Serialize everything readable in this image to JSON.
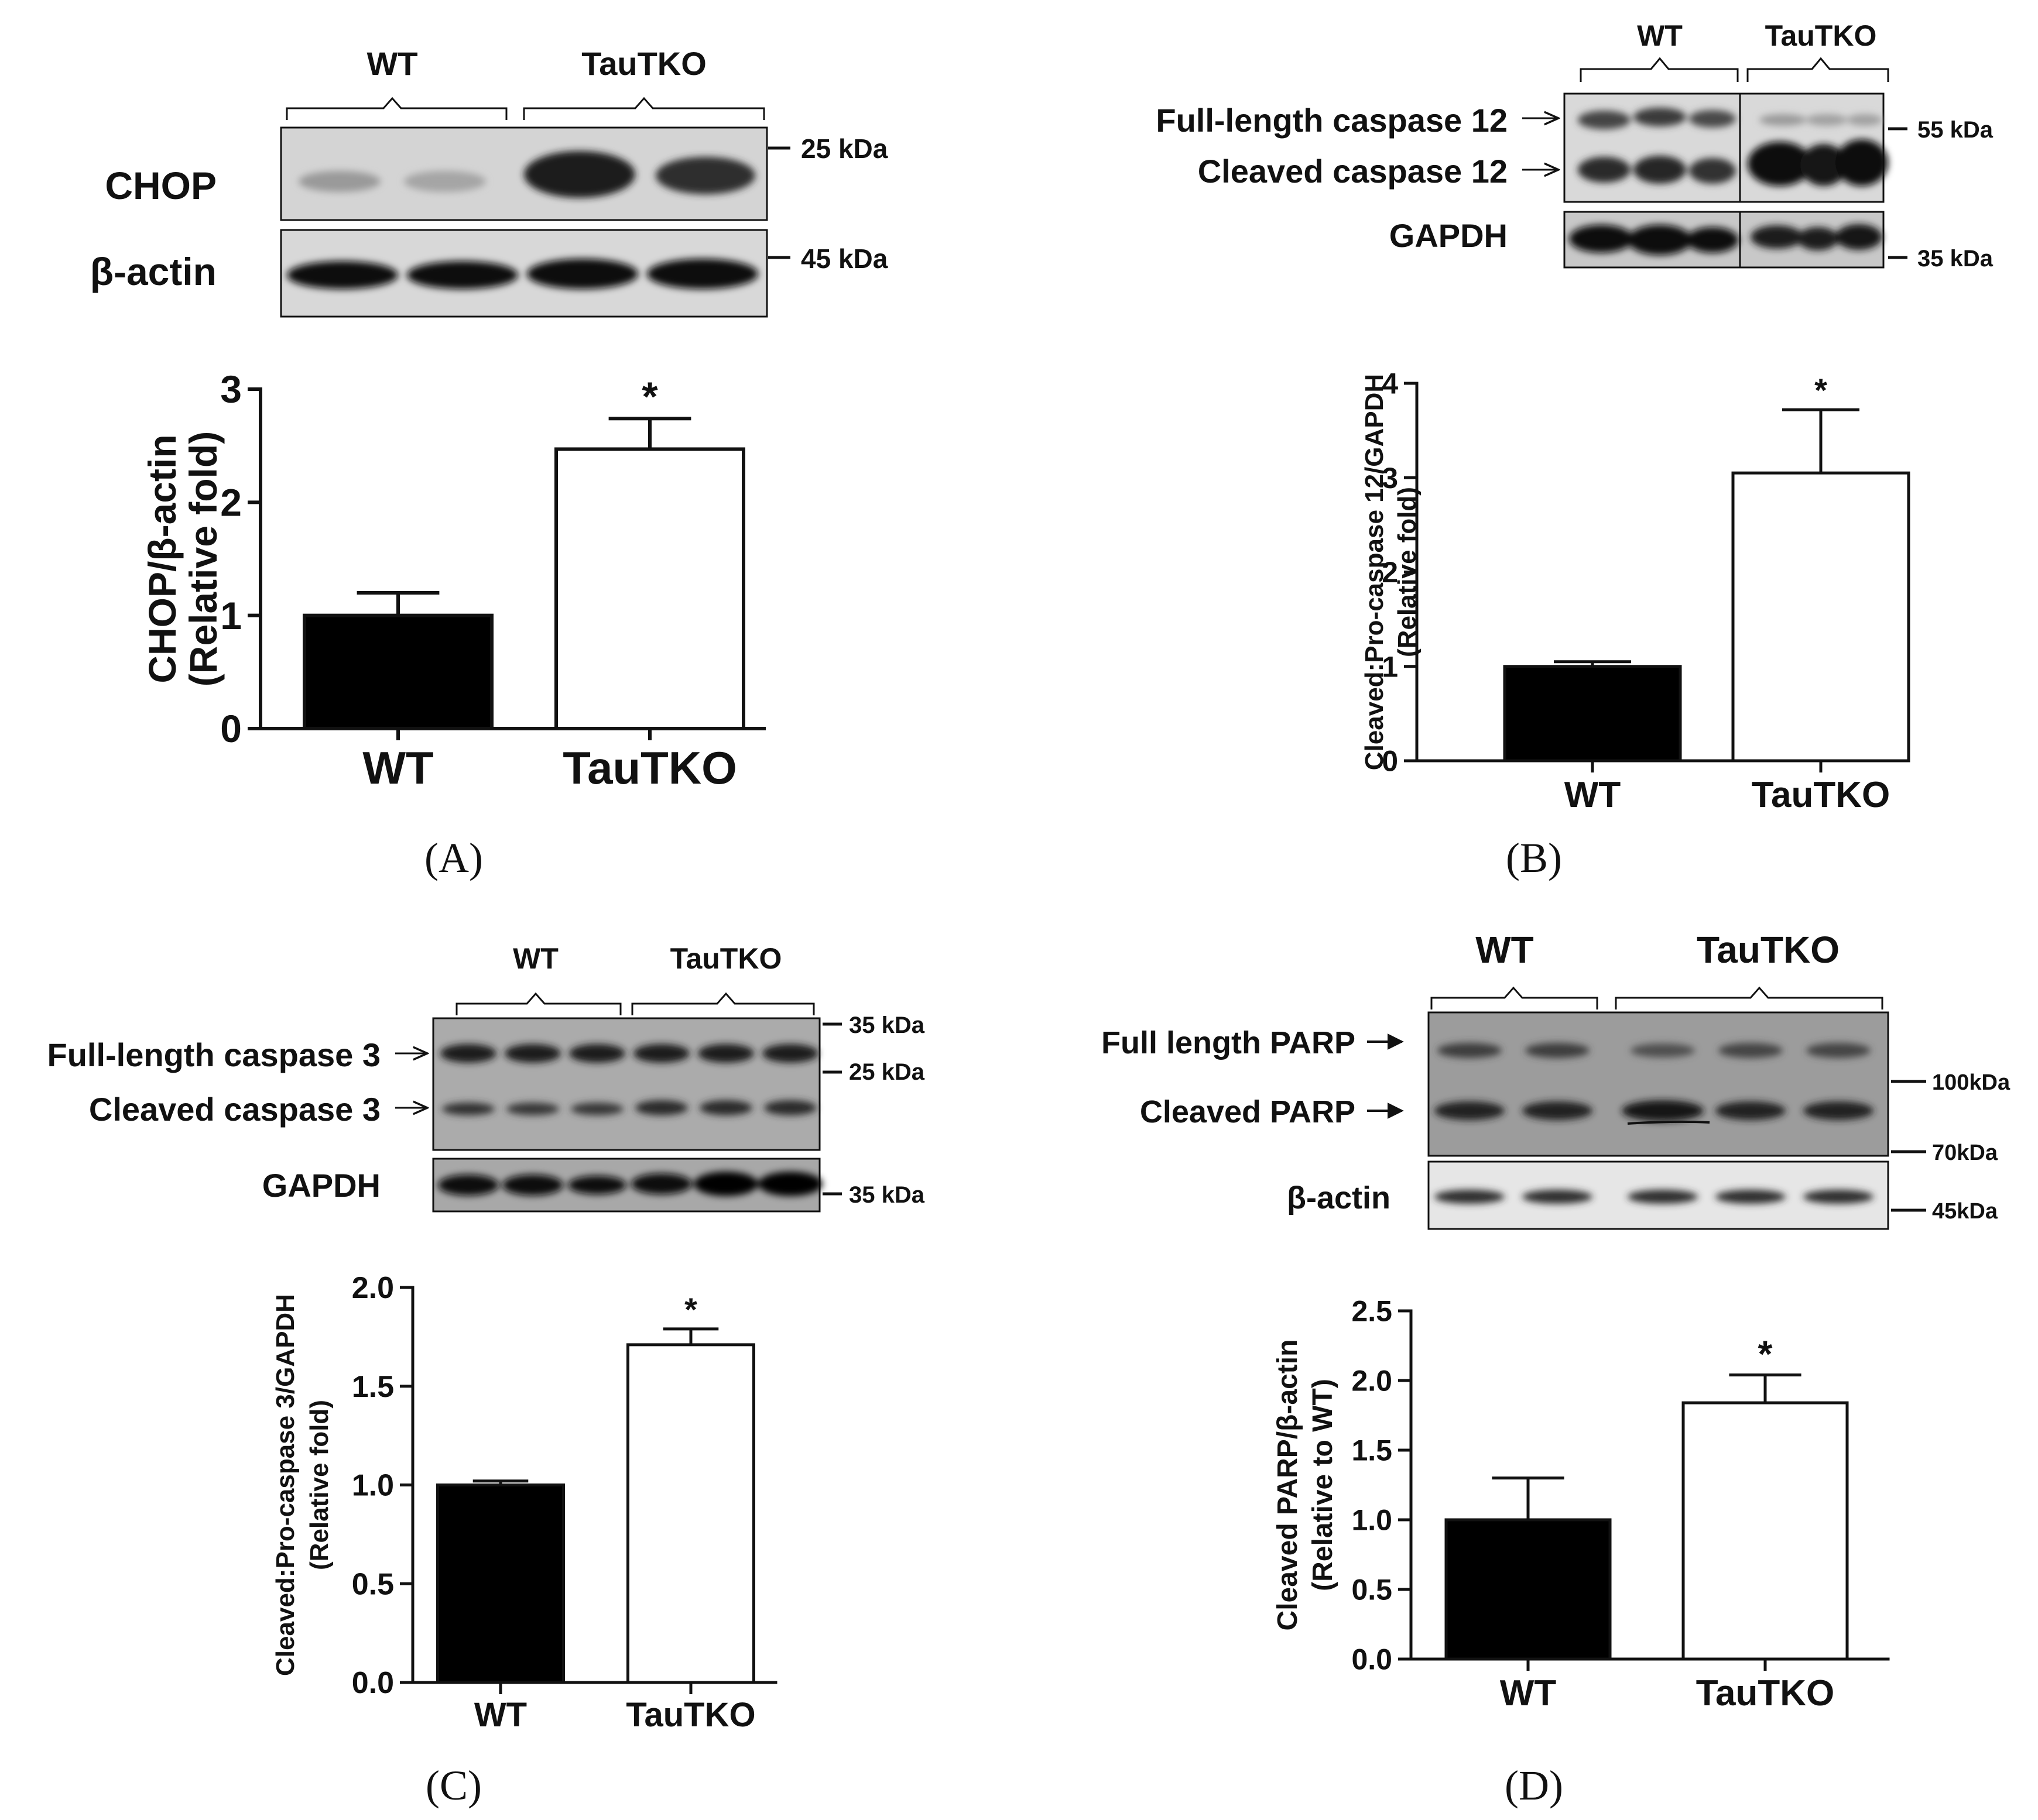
{
  "colors": {
    "wt_bar": "#000000",
    "tautko_bar": "#ffffff",
    "axis": "#111111",
    "blot_bg": "#d0d0d0",
    "band": "#222222"
  },
  "panels": [
    {
      "id": "A",
      "panel_label": "(A)",
      "blot": {
        "group_labels": [
          "WT",
          "TauTKO"
        ],
        "row_labels": [
          "CHOP",
          "β-actin"
        ],
        "marker_labels": [
          "25 kDa",
          "45 kDa"
        ]
      }
    },
    {
      "id": "B",
      "panel_label": "(B)",
      "blot": {
        "group_labels": [
          "WT",
          "TauTKO"
        ],
        "row_labels": [
          "Full-length caspase 12",
          "Cleaved caspase 12",
          "GAPDH"
        ],
        "marker_labels": [
          "55 kDa",
          "35 kDa"
        ]
      }
    },
    {
      "id": "C",
      "panel_label": "(C)",
      "blot": {
        "group_labels": [
          "WT",
          "TauTKO"
        ],
        "row_labels": [
          "Full-length caspase 3",
          "Cleaved caspase 3",
          "GAPDH"
        ],
        "marker_labels": [
          "35 kDa",
          "25 kDa",
          "35 kDa"
        ]
      }
    },
    {
      "id": "D",
      "panel_label": "(D)",
      "blot": {
        "group_labels": [
          "WT",
          "TauTKO"
        ],
        "row_labels": [
          "Full length PARP",
          "Cleaved PARP",
          "β-actin"
        ],
        "marker_labels": [
          "100kDa",
          "70kDa",
          "45kDa"
        ]
      }
    }
  ],
  "chart_data": [
    {
      "panel": "A",
      "type": "bar",
      "categories": [
        "WT",
        "TauTKO"
      ],
      "values": [
        1.0,
        2.47
      ],
      "errors": [
        0.2,
        0.27
      ],
      "significance": [
        "",
        "*"
      ],
      "ylabel_lines": [
        "CHOP/β-actin",
        "(Relative fold)"
      ],
      "ylim": [
        0,
        3
      ],
      "yticks": [
        0,
        1,
        2,
        3
      ],
      "tick_labels": [
        "0",
        "1",
        "2",
        "3"
      ]
    },
    {
      "panel": "B",
      "type": "bar",
      "categories": [
        "WT",
        "TauTKO"
      ],
      "values": [
        1.0,
        3.05
      ],
      "errors": [
        0.05,
        0.67
      ],
      "significance": [
        "",
        "*"
      ],
      "ylabel_lines": [
        "Cleaved:Pro-caspase 12/GAPDH",
        "(Relative fold)"
      ],
      "ylim": [
        0,
        4
      ],
      "yticks": [
        0,
        1,
        2,
        3,
        4
      ],
      "tick_labels": [
        "0",
        "1",
        "2",
        "3",
        "4"
      ]
    },
    {
      "panel": "C",
      "type": "bar",
      "categories": [
        "WT",
        "TauTKO"
      ],
      "values": [
        1.0,
        1.71
      ],
      "errors": [
        0.02,
        0.08
      ],
      "significance": [
        "",
        "*"
      ],
      "ylabel_lines": [
        "Cleaved:Pro-caspase 3/GAPDH",
        "(Relative fold)"
      ],
      "ylim": [
        0,
        2
      ],
      "yticks": [
        0,
        0.5,
        1,
        1.5,
        2
      ],
      "tick_labels": [
        "0.0",
        "0.5",
        "1.0",
        "1.5",
        "2.0"
      ]
    },
    {
      "panel": "D",
      "type": "bar",
      "categories": [
        "WT",
        "TauTKO"
      ],
      "values": [
        1.0,
        1.84
      ],
      "errors": [
        0.3,
        0.2
      ],
      "significance": [
        "",
        "*"
      ],
      "ylabel_lines": [
        "Cleaved PARP/β-actin",
        "(Relative to WT)"
      ],
      "ylim": [
        0,
        2.5
      ],
      "yticks": [
        0,
        0.5,
        1,
        1.5,
        2,
        2.5
      ],
      "tick_labels": [
        "0.0",
        "0.5",
        "1.0",
        "1.5",
        "2.0",
        "2.5"
      ]
    }
  ]
}
